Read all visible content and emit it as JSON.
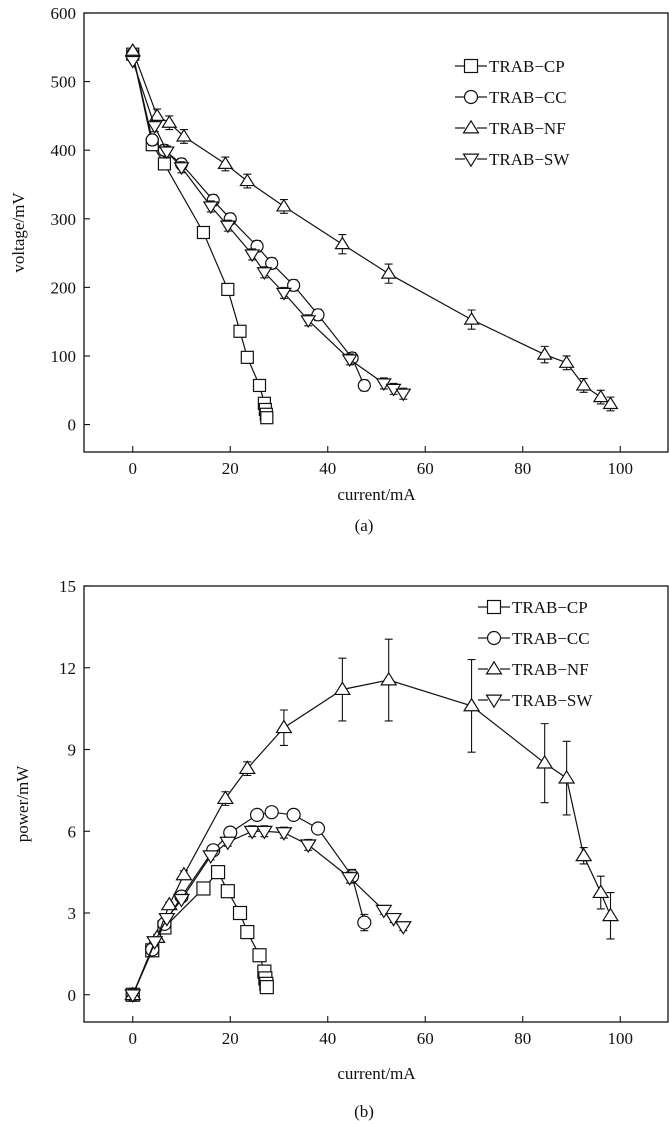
{
  "chart_data": [
    {
      "type": "line",
      "panel_label": "(a)",
      "xlabel": "current/mA",
      "ylabel": "voltage/mV",
      "xlim": [
        -10,
        110
      ],
      "ylim": [
        -40,
        600
      ],
      "xticks": [
        0,
        20,
        40,
        60,
        80,
        100
      ],
      "yticks": [
        0,
        100,
        200,
        300,
        400,
        500,
        600
      ],
      "legend_position": "top-right",
      "series": [
        {
          "name": "TRAB−CP",
          "marker": "square",
          "x": [
            0,
            4,
            6.5,
            14.5,
            19.5,
            22,
            23.5,
            26,
            27,
            27.2,
            27.4,
            27.5
          ],
          "y": [
            540,
            408,
            380,
            280,
            197,
            136,
            98,
            57,
            31,
            22,
            15,
            10
          ],
          "err": [
            0,
            8,
            8,
            8,
            8,
            8,
            8,
            8,
            8,
            8,
            8,
            8
          ]
        },
        {
          "name": "TRAB−CC",
          "marker": "circle",
          "x": [
            0,
            4,
            6.5,
            10,
            16.5,
            20,
            25.5,
            28.5,
            33,
            38,
            45,
            47.5
          ],
          "y": [
            540,
            415,
            400,
            380,
            327,
            300,
            260,
            235,
            203,
            160,
            97,
            57
          ],
          "err": [
            0,
            8,
            8,
            8,
            8,
            8,
            8,
            8,
            8,
            8,
            8,
            8
          ]
        },
        {
          "name": "TRAB−NF",
          "marker": "triangle-up",
          "x": [
            0,
            5,
            7.5,
            10.5,
            19,
            23.5,
            31,
            43,
            52.5,
            69.5,
            84.5,
            89,
            92.5,
            96,
            98
          ],
          "y": [
            545,
            450,
            440,
            420,
            380,
            355,
            318,
            263,
            220,
            153,
            102,
            90,
            57,
            40,
            30
          ],
          "err": [
            0,
            10,
            10,
            10,
            10,
            10,
            10,
            14,
            14,
            14,
            12,
            10,
            10,
            10,
            10
          ]
        },
        {
          "name": "TRAB−SW",
          "marker": "triangle-down",
          "x": [
            0,
            4.5,
            7,
            10,
            16,
            19.5,
            24.5,
            27,
            31,
            36,
            44.5,
            51.5,
            53.5,
            55.5
          ],
          "y": [
            530,
            435,
            398,
            375,
            318,
            290,
            248,
            222,
            192,
            152,
            95,
            60,
            52,
            45
          ],
          "err": [
            0,
            8,
            8,
            8,
            8,
            8,
            8,
            8,
            8,
            8,
            8,
            8,
            8,
            8
          ]
        }
      ]
    },
    {
      "type": "line",
      "panel_label": "(b)",
      "xlabel": "current/mA",
      "ylabel": "power/mW",
      "xlim": [
        -10,
        110
      ],
      "ylim": [
        -1,
        15
      ],
      "xticks": [
        0,
        20,
        40,
        60,
        80,
        100
      ],
      "yticks": [
        0,
        3,
        6,
        9,
        12,
        15
      ],
      "legend_position": "top-right",
      "series": [
        {
          "name": "TRAB−CP",
          "marker": "square",
          "x": [
            0,
            4,
            6.5,
            14.5,
            17.5,
            19.5,
            22,
            23.5,
            26,
            27,
            27.2,
            27.4,
            27.5
          ],
          "y": [
            0,
            1.63,
            2.47,
            3.9,
            4.5,
            3.8,
            3.0,
            2.3,
            1.45,
            0.85,
            0.6,
            0.4,
            0.28
          ],
          "err": [
            0,
            0.1,
            0.1,
            0.1,
            0.15,
            0.15,
            0.1,
            0.1,
            0.1,
            0.1,
            0.1,
            0.1,
            0.1
          ]
        },
        {
          "name": "TRAB−CC",
          "marker": "circle",
          "x": [
            0,
            4,
            6.5,
            10,
            16.5,
            20,
            25.5,
            28.5,
            33,
            38,
            45,
            47.5
          ],
          "y": [
            0,
            1.66,
            2.6,
            3.6,
            5.3,
            5.95,
            6.6,
            6.7,
            6.6,
            6.1,
            4.35,
            2.65
          ],
          "err": [
            0,
            0.1,
            0.1,
            0.1,
            0.15,
            0.2,
            0.2,
            0.2,
            0.2,
            0.2,
            0.25,
            0.3
          ]
        },
        {
          "name": "TRAB−NF",
          "marker": "triangle-up",
          "x": [
            0,
            5,
            7.5,
            10.5,
            19,
            23.5,
            31,
            43,
            52.5,
            69.5,
            84.5,
            89,
            92.5,
            96,
            98
          ],
          "y": [
            0,
            2.1,
            3.3,
            4.4,
            7.2,
            8.3,
            9.8,
            11.2,
            11.55,
            10.6,
            8.5,
            7.95,
            5.1,
            3.75,
            2.9
          ],
          "err": [
            0,
            0.1,
            0.1,
            0.15,
            0.25,
            0.25,
            0.65,
            1.15,
            1.5,
            1.7,
            1.45,
            1.35,
            0.3,
            0.6,
            0.85
          ]
        },
        {
          "name": "TRAB−SW",
          "marker": "triangle-down",
          "x": [
            0,
            4.5,
            7,
            10,
            16,
            19.5,
            24.5,
            27,
            31,
            36,
            44.5,
            51.5,
            53.5,
            55.5
          ],
          "y": [
            0,
            1.95,
            2.8,
            3.5,
            5.1,
            5.6,
            6.0,
            6.0,
            5.95,
            5.5,
            4.3,
            3.1,
            2.8,
            2.5
          ],
          "err": [
            0,
            0.1,
            0.1,
            0.1,
            0.15,
            0.15,
            0.2,
            0.2,
            0.2,
            0.2,
            0.2,
            0.15,
            0.15,
            0.15
          ]
        }
      ]
    }
  ]
}
